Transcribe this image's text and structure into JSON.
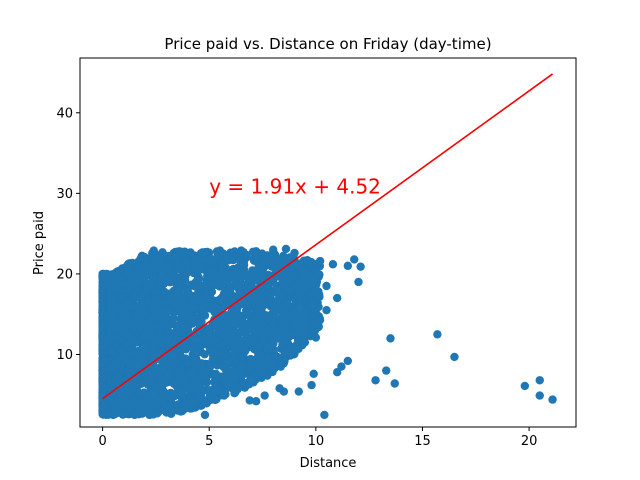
{
  "chart_data": {
    "type": "scatter",
    "title": "Price paid vs. Distance on Friday (day-time)",
    "xlabel": "Distance",
    "ylabel": "Price paid",
    "xlim": [
      -1.06,
      22.2
    ],
    "ylim": [
      1.0,
      46.8
    ],
    "x_ticks": [
      0,
      5,
      10,
      15,
      20
    ],
    "y_ticks": [
      10,
      20,
      30,
      40
    ],
    "grid": false,
    "point_color": "#1f77b4",
    "line_color": "#ff0000",
    "annotation": {
      "text": "y = 1.91x + 4.52",
      "x": 5.0,
      "y": 30.0,
      "color": "#ff0000"
    },
    "regression": {
      "slope": 1.91,
      "intercept": 4.52,
      "x_range": [
        0,
        21.1
      ]
    },
    "dense_region": {
      "description_points": "main cluster band",
      "band": [
        [
          0,
          2.5,
          20.0
        ],
        [
          0.5,
          2.5,
          20.0
        ],
        [
          1,
          2.5,
          21.0
        ],
        [
          2,
          2.5,
          22.5
        ],
        [
          3,
          2.5,
          22.8
        ],
        [
          4,
          3.0,
          22.8
        ],
        [
          5,
          4.0,
          22.8
        ],
        [
          6,
          5.0,
          22.8
        ],
        [
          7,
          6.0,
          22.8
        ],
        [
          8,
          7.5,
          22.5
        ],
        [
          9,
          10.0,
          22.0
        ],
        [
          10,
          13.0,
          21.5
        ]
      ]
    },
    "points": [
      [
        0,
        20.0
      ],
      [
        0,
        19.5
      ],
      [
        0,
        18.0
      ],
      [
        0,
        15.5
      ],
      [
        0.2,
        20.0
      ],
      [
        0.5,
        19.8
      ],
      [
        0.8,
        19.5
      ],
      [
        1.0,
        20.6
      ],
      [
        1.4,
        20.0
      ],
      [
        2.4,
        22.9
      ],
      [
        3.6,
        22.8
      ],
      [
        4.8,
        22.7
      ],
      [
        5.5,
        22.9
      ],
      [
        6.5,
        22.9
      ],
      [
        7.2,
        22.8
      ],
      [
        8.0,
        23.0
      ],
      [
        8.6,
        23.1
      ],
      [
        9.0,
        22.6
      ],
      [
        9.6,
        21.7
      ],
      [
        10.2,
        21.6
      ],
      [
        10.8,
        21.2
      ],
      [
        11.5,
        21.0
      ],
      [
        11.8,
        21.8
      ],
      [
        12.1,
        20.9
      ],
      [
        12.0,
        19.0
      ],
      [
        10.5,
        18.5
      ],
      [
        9.5,
        18.0
      ],
      [
        8.0,
        12.2
      ],
      [
        7.5,
        11.8
      ],
      [
        7.0,
        9.2
      ],
      [
        6.5,
        8.0
      ],
      [
        10.0,
        12.1
      ],
      [
        11.2,
        8.5
      ],
      [
        11.5,
        9.2
      ],
      [
        11.0,
        7.8
      ],
      [
        12.8,
        6.8
      ],
      [
        13.3,
        8.0
      ],
      [
        13.5,
        12.0
      ],
      [
        13.7,
        6.4
      ],
      [
        15.7,
        12.5
      ],
      [
        16.5,
        9.7
      ],
      [
        19.8,
        6.1
      ],
      [
        20.5,
        6.8
      ],
      [
        20.5,
        4.9
      ],
      [
        21.1,
        4.4
      ],
      [
        10.4,
        2.5
      ],
      [
        9.9,
        7.6
      ],
      [
        9.2,
        5.4
      ],
      [
        8.5,
        5.4
      ],
      [
        7.6,
        4.9
      ],
      [
        7.2,
        4.2
      ],
      [
        6.6,
        6.5
      ],
      [
        5.7,
        4.9
      ],
      [
        5.3,
        7.2
      ],
      [
        4.8,
        2.5
      ],
      [
        4.2,
        4.0
      ],
      [
        3.8,
        3.5
      ],
      [
        3.0,
        2.8
      ],
      [
        2.2,
        2.5
      ],
      [
        1.5,
        2.5
      ],
      [
        1.0,
        2.6
      ],
      [
        0.5,
        2.5
      ],
      [
        0,
        2.6
      ],
      [
        0,
        3.5
      ],
      [
        0,
        5.0
      ],
      [
        0,
        7.0
      ],
      [
        0,
        9.0
      ],
      [
        0,
        11.0
      ],
      [
        0,
        13.0
      ],
      [
        6.0,
        7.8
      ],
      [
        6.9,
        4.3
      ],
      [
        8.3,
        5.8
      ],
      [
        9.8,
        6.2
      ],
      [
        7.8,
        9.6
      ],
      [
        8.8,
        10.0
      ],
      [
        9.5,
        13.0
      ],
      [
        10.5,
        15.5
      ],
      [
        11.0,
        17.0
      ],
      [
        10.0,
        19.5
      ],
      [
        9.0,
        21.0
      ]
    ]
  }
}
